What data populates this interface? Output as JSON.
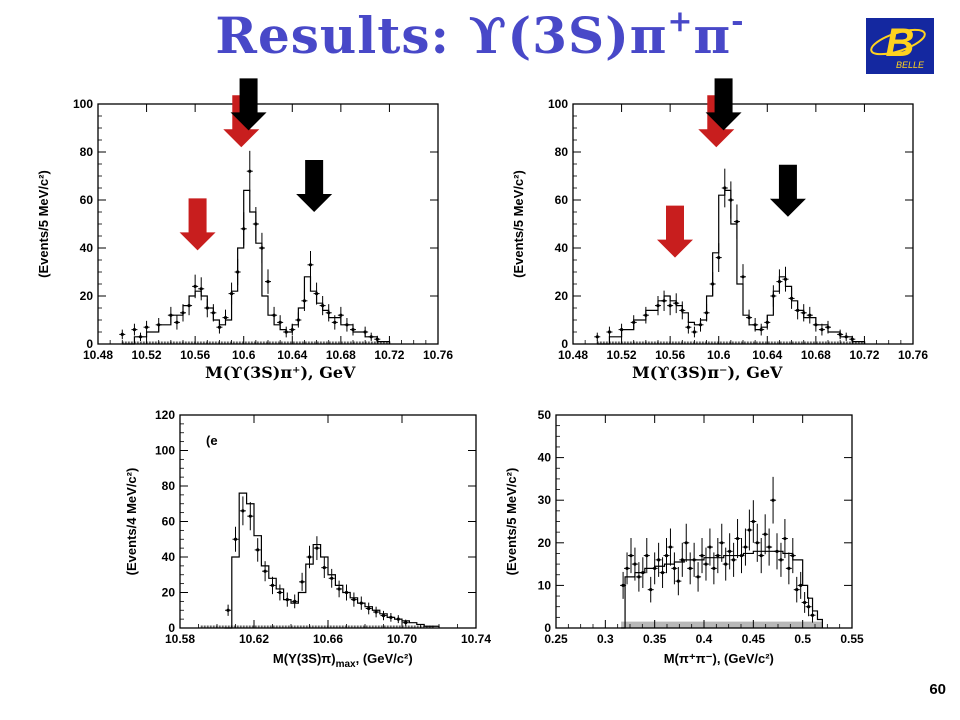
{
  "slide": {
    "title_main": "Results: ϒ(3S)π",
    "title_sup1": "+",
    "title_pi": "π",
    "title_sup2": "-",
    "page_number": "60",
    "logo_letter": "B",
    "logo_text": "BELLE",
    "colors": {
      "title": "#4848c8",
      "logo_bg": "#1428a0",
      "logo_fg": "#ffd21e",
      "red_arrow": "#c81e1e",
      "black_arrow": "#000000"
    }
  },
  "chart_data": [
    {
      "type": "histogram",
      "id": "top-left",
      "ylabel": "(Events/5 MeV/c²)",
      "xlabel": "M(ϒ(3S)π⁺), GeV",
      "xlim": [
        10.48,
        10.76
      ],
      "ylim": [
        0,
        100
      ],
      "xticks": [
        10.48,
        10.52,
        10.56,
        10.6,
        10.64,
        10.68,
        10.72,
        10.76
      ],
      "xtick_labels": [
        "10.48",
        "10.52",
        "10.56",
        "10.6",
        "10.64",
        "10.68",
        "10.72",
        "10.76"
      ],
      "yticks": [
        0,
        20,
        40,
        60,
        80,
        100
      ],
      "ytick_labels": [
        "0",
        "20",
        "40",
        "60",
        "80",
        "100"
      ],
      "fit": {
        "x": [
          10.5,
          10.51,
          10.52,
          10.53,
          10.54,
          10.55,
          10.555,
          10.56,
          10.565,
          10.57,
          10.575,
          10.58,
          10.585,
          10.59,
          10.595,
          10.6,
          10.605,
          10.61,
          10.615,
          10.62,
          10.625,
          10.63,
          10.635,
          10.64,
          10.645,
          10.65,
          10.655,
          10.66,
          10.665,
          10.67,
          10.68,
          10.69,
          10.7,
          10.71,
          10.72
        ],
        "y": [
          0,
          3,
          5,
          8,
          12,
          16,
          20,
          22,
          20,
          15,
          10,
          8,
          10,
          22,
          40,
          64,
          55,
          42,
          20,
          12,
          8,
          6,
          5,
          8,
          15,
          28,
          22,
          17,
          14,
          11,
          8,
          5,
          3,
          1,
          0
        ]
      },
      "points": [
        {
          "x": 10.5,
          "y": 4
        },
        {
          "x": 10.51,
          "y": 6
        },
        {
          "x": 10.515,
          "y": 3
        },
        {
          "x": 10.52,
          "y": 7
        },
        {
          "x": 10.53,
          "y": 8
        },
        {
          "x": 10.54,
          "y": 12
        },
        {
          "x": 10.545,
          "y": 9
        },
        {
          "x": 10.55,
          "y": 13
        },
        {
          "x": 10.555,
          "y": 16
        },
        {
          "x": 10.56,
          "y": 24
        },
        {
          "x": 10.565,
          "y": 23
        },
        {
          "x": 10.57,
          "y": 15
        },
        {
          "x": 10.575,
          "y": 13
        },
        {
          "x": 10.58,
          "y": 7
        },
        {
          "x": 10.585,
          "y": 11
        },
        {
          "x": 10.59,
          "y": 21
        },
        {
          "x": 10.595,
          "y": 30
        },
        {
          "x": 10.6,
          "y": 48
        },
        {
          "x": 10.605,
          "y": 72
        },
        {
          "x": 10.61,
          "y": 50
        },
        {
          "x": 10.615,
          "y": 40
        },
        {
          "x": 10.62,
          "y": 26
        },
        {
          "x": 10.625,
          "y": 12
        },
        {
          "x": 10.63,
          "y": 9
        },
        {
          "x": 10.635,
          "y": 5
        },
        {
          "x": 10.64,
          "y": 6
        },
        {
          "x": 10.645,
          "y": 10
        },
        {
          "x": 10.65,
          "y": 18
        },
        {
          "x": 10.655,
          "y": 33
        },
        {
          "x": 10.66,
          "y": 21
        },
        {
          "x": 10.665,
          "y": 16
        },
        {
          "x": 10.67,
          "y": 13
        },
        {
          "x": 10.675,
          "y": 9
        },
        {
          "x": 10.68,
          "y": 12
        },
        {
          "x": 10.685,
          "y": 8
        },
        {
          "x": 10.69,
          "y": 6
        },
        {
          "x": 10.7,
          "y": 5
        },
        {
          "x": 10.705,
          "y": 3
        },
        {
          "x": 10.71,
          "y": 2
        }
      ],
      "arrows": [
        {
          "color": "red",
          "x": 10.562,
          "y_tip": 39
        },
        {
          "color": "red",
          "x": 10.598,
          "y_tip": 82
        },
        {
          "color": "black",
          "x": 10.604,
          "y_tip": 89
        },
        {
          "color": "black",
          "x": 10.658,
          "y_tip": 55
        }
      ]
    },
    {
      "type": "histogram",
      "id": "top-right",
      "ylabel": "(Events/5 MeV/c²)",
      "xlabel": "M(ϒ(3S)π⁻), GeV",
      "xlim": [
        10.48,
        10.76
      ],
      "ylim": [
        0,
        100
      ],
      "xticks": [
        10.48,
        10.52,
        10.56,
        10.6,
        10.64,
        10.68,
        10.72,
        10.76
      ],
      "xtick_labels": [
        "10.48",
        "10.52",
        "10.56",
        "10.6",
        "10.64",
        "10.68",
        "10.72",
        "10.76"
      ],
      "yticks": [
        0,
        20,
        40,
        60,
        80,
        100
      ],
      "ytick_labels": [
        "0",
        "20",
        "40",
        "60",
        "80",
        "100"
      ],
      "fit": {
        "x": [
          10.5,
          10.51,
          10.52,
          10.53,
          10.54,
          10.55,
          10.555,
          10.56,
          10.565,
          10.57,
          10.575,
          10.58,
          10.585,
          10.59,
          10.595,
          10.6,
          10.605,
          10.61,
          10.615,
          10.62,
          10.625,
          10.63,
          10.635,
          10.64,
          10.645,
          10.65,
          10.655,
          10.66,
          10.665,
          10.67,
          10.68,
          10.69,
          10.7,
          10.71,
          10.72
        ],
        "y": [
          0,
          3,
          6,
          10,
          14,
          18,
          20,
          18,
          16,
          13,
          9,
          8,
          10,
          20,
          38,
          62,
          64,
          50,
          25,
          12,
          8,
          6,
          7,
          12,
          22,
          28,
          24,
          18,
          14,
          11,
          8,
          5,
          3,
          1,
          0
        ]
      },
      "points": [
        {
          "x": 10.5,
          "y": 3
        },
        {
          "x": 10.51,
          "y": 5
        },
        {
          "x": 10.52,
          "y": 6
        },
        {
          "x": 10.53,
          "y": 9
        },
        {
          "x": 10.54,
          "y": 12
        },
        {
          "x": 10.55,
          "y": 16
        },
        {
          "x": 10.555,
          "y": 18
        },
        {
          "x": 10.56,
          "y": 16
        },
        {
          "x": 10.565,
          "y": 17
        },
        {
          "x": 10.57,
          "y": 14
        },
        {
          "x": 10.575,
          "y": 7
        },
        {
          "x": 10.58,
          "y": 5
        },
        {
          "x": 10.585,
          "y": 8
        },
        {
          "x": 10.59,
          "y": 13
        },
        {
          "x": 10.595,
          "y": 25
        },
        {
          "x": 10.6,
          "y": 36
        },
        {
          "x": 10.605,
          "y": 65
        },
        {
          "x": 10.61,
          "y": 60
        },
        {
          "x": 10.615,
          "y": 51
        },
        {
          "x": 10.62,
          "y": 28
        },
        {
          "x": 10.625,
          "y": 11
        },
        {
          "x": 10.63,
          "y": 8
        },
        {
          "x": 10.635,
          "y": 6
        },
        {
          "x": 10.64,
          "y": 9
        },
        {
          "x": 10.645,
          "y": 20
        },
        {
          "x": 10.65,
          "y": 26
        },
        {
          "x": 10.655,
          "y": 27
        },
        {
          "x": 10.66,
          "y": 19
        },
        {
          "x": 10.665,
          "y": 14
        },
        {
          "x": 10.67,
          "y": 13
        },
        {
          "x": 10.675,
          "y": 12
        },
        {
          "x": 10.68,
          "y": 8
        },
        {
          "x": 10.685,
          "y": 6
        },
        {
          "x": 10.69,
          "y": 7
        },
        {
          "x": 10.7,
          "y": 4
        },
        {
          "x": 10.705,
          "y": 3
        },
        {
          "x": 10.71,
          "y": 2
        }
      ],
      "arrows": [
        {
          "color": "red",
          "x": 10.564,
          "y_tip": 36
        },
        {
          "color": "red",
          "x": 10.598,
          "y_tip": 82
        },
        {
          "color": "black",
          "x": 10.604,
          "y_tip": 89
        },
        {
          "color": "black",
          "x": 10.657,
          "y_tip": 53
        }
      ]
    },
    {
      "type": "histogram",
      "id": "bottom-left",
      "ylabel": "(Events/4 MeV/c²)",
      "xlabel": "M(Y(3S)π)",
      "xlabel_sub": "max",
      "xlabel_unit": ", (GeV/c²)",
      "inset_label": "(e",
      "xlim": [
        10.58,
        10.74
      ],
      "ylim": [
        0,
        120
      ],
      "xticks": [
        10.58,
        10.62,
        10.66,
        10.7,
        10.74
      ],
      "xtick_labels": [
        "10.58",
        "10.62",
        "10.66",
        "10.70",
        "10.74"
      ],
      "yticks": [
        0,
        20,
        40,
        60,
        80,
        100,
        120
      ],
      "ytick_labels": [
        "0",
        "20",
        "40",
        "60",
        "80",
        "100",
        "120"
      ],
      "fit": {
        "x": [
          10.604,
          10.608,
          10.612,
          10.616,
          10.62,
          10.624,
          10.628,
          10.632,
          10.636,
          10.64,
          10.644,
          10.648,
          10.652,
          10.656,
          10.66,
          10.664,
          10.668,
          10.672,
          10.676,
          10.68,
          10.684,
          10.688,
          10.692,
          10.696,
          10.7,
          10.704,
          10.708,
          10.712,
          10.716,
          10.72
        ],
        "y": [
          0,
          40,
          76,
          70,
          52,
          35,
          28,
          22,
          16,
          14,
          20,
          36,
          47,
          40,
          30,
          24,
          20,
          17,
          14,
          12,
          10,
          8,
          6,
          5,
          4,
          3,
          2,
          1,
          1,
          0
        ]
      },
      "points": [
        {
          "x": 10.606,
          "y": 10
        },
        {
          "x": 10.61,
          "y": 50
        },
        {
          "x": 10.614,
          "y": 66
        },
        {
          "x": 10.618,
          "y": 63
        },
        {
          "x": 10.622,
          "y": 44
        },
        {
          "x": 10.626,
          "y": 32
        },
        {
          "x": 10.63,
          "y": 24
        },
        {
          "x": 10.634,
          "y": 20
        },
        {
          "x": 10.638,
          "y": 16
        },
        {
          "x": 10.642,
          "y": 15
        },
        {
          "x": 10.646,
          "y": 26
        },
        {
          "x": 10.65,
          "y": 40
        },
        {
          "x": 10.654,
          "y": 45
        },
        {
          "x": 10.658,
          "y": 34
        },
        {
          "x": 10.662,
          "y": 28
        },
        {
          "x": 10.666,
          "y": 22
        },
        {
          "x": 10.67,
          "y": 20
        },
        {
          "x": 10.674,
          "y": 16
        },
        {
          "x": 10.678,
          "y": 14
        },
        {
          "x": 10.682,
          "y": 11
        },
        {
          "x": 10.686,
          "y": 9
        },
        {
          "x": 10.69,
          "y": 7
        },
        {
          "x": 10.694,
          "y": 6
        },
        {
          "x": 10.698,
          "y": 5
        },
        {
          "x": 10.702,
          "y": 3
        }
      ]
    },
    {
      "type": "histogram",
      "id": "bottom-right",
      "ylabel": "(Events/5 MeV/c²)",
      "xlabel": "M(π⁺π⁻), (GeV/c²)",
      "xlim": [
        0.25,
        0.55
      ],
      "ylim": [
        0,
        50
      ],
      "xticks": [
        0.25,
        0.3,
        0.35,
        0.4,
        0.45,
        0.5,
        0.55
      ],
      "xtick_labels": [
        "0.25",
        "0.3",
        "0.35",
        "0.4",
        "0.45",
        "0.5",
        "0.55"
      ],
      "yticks": [
        0,
        10,
        20,
        30,
        40,
        50
      ],
      "ytick_labels": [
        "0",
        "10",
        "20",
        "30",
        "40",
        "50"
      ],
      "fit": {
        "x": [
          0.316,
          0.32,
          0.33,
          0.34,
          0.35,
          0.36,
          0.37,
          0.38,
          0.39,
          0.4,
          0.41,
          0.42,
          0.43,
          0.44,
          0.45,
          0.46,
          0.47,
          0.48,
          0.49,
          0.5,
          0.505,
          0.51,
          0.515,
          0.52
        ],
        "y": [
          0,
          12,
          13,
          14,
          14.5,
          15,
          15.5,
          16,
          16,
          16.5,
          16.5,
          17,
          17,
          17.5,
          18,
          18,
          18,
          17.5,
          16,
          10,
          7,
          4,
          2,
          0
        ]
      },
      "background_band": {
        "x_start": 0.316,
        "x_end": 0.52,
        "y_level": 1.5
      },
      "points": [
        {
          "x": 0.318,
          "y": 10
        },
        {
          "x": 0.322,
          "y": 14
        },
        {
          "x": 0.326,
          "y": 17
        },
        {
          "x": 0.33,
          "y": 15
        },
        {
          "x": 0.334,
          "y": 12
        },
        {
          "x": 0.338,
          "y": 13
        },
        {
          "x": 0.342,
          "y": 17
        },
        {
          "x": 0.346,
          "y": 9
        },
        {
          "x": 0.35,
          "y": 14
        },
        {
          "x": 0.354,
          "y": 16
        },
        {
          "x": 0.358,
          "y": 13
        },
        {
          "x": 0.362,
          "y": 17
        },
        {
          "x": 0.366,
          "y": 19
        },
        {
          "x": 0.37,
          "y": 14
        },
        {
          "x": 0.374,
          "y": 11
        },
        {
          "x": 0.378,
          "y": 16
        },
        {
          "x": 0.382,
          "y": 20
        },
        {
          "x": 0.386,
          "y": 14
        },
        {
          "x": 0.39,
          "y": 16
        },
        {
          "x": 0.394,
          "y": 12
        },
        {
          "x": 0.398,
          "y": 17
        },
        {
          "x": 0.402,
          "y": 15
        },
        {
          "x": 0.406,
          "y": 19
        },
        {
          "x": 0.41,
          "y": 14
        },
        {
          "x": 0.414,
          "y": 17
        },
        {
          "x": 0.418,
          "y": 20
        },
        {
          "x": 0.422,
          "y": 15
        },
        {
          "x": 0.426,
          "y": 18
        },
        {
          "x": 0.43,
          "y": 16
        },
        {
          "x": 0.434,
          "y": 21
        },
        {
          "x": 0.438,
          "y": 17
        },
        {
          "x": 0.442,
          "y": 19
        },
        {
          "x": 0.446,
          "y": 23
        },
        {
          "x": 0.45,
          "y": 25
        },
        {
          "x": 0.454,
          "y": 20
        },
        {
          "x": 0.458,
          "y": 17
        },
        {
          "x": 0.462,
          "y": 22
        },
        {
          "x": 0.466,
          "y": 19
        },
        {
          "x": 0.47,
          "y": 30
        },
        {
          "x": 0.474,
          "y": 18
        },
        {
          "x": 0.478,
          "y": 16
        },
        {
          "x": 0.482,
          "y": 21
        },
        {
          "x": 0.486,
          "y": 14
        },
        {
          "x": 0.49,
          "y": 17
        },
        {
          "x": 0.494,
          "y": 9
        },
        {
          "x": 0.498,
          "y": 10
        },
        {
          "x": 0.502,
          "y": 6
        },
        {
          "x": 0.506,
          "y": 5
        },
        {
          "x": 0.51,
          "y": 3
        }
      ]
    }
  ]
}
